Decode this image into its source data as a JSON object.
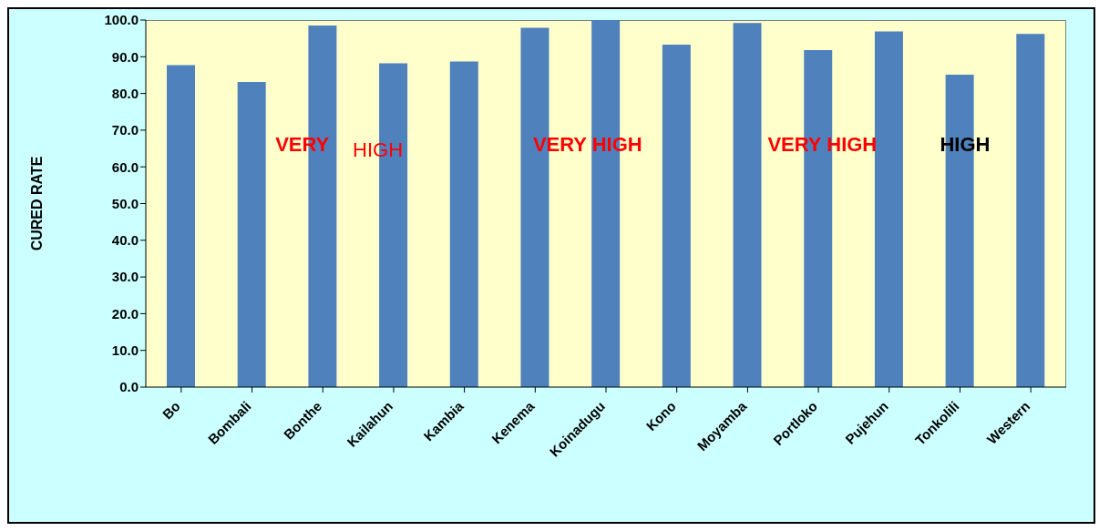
{
  "chart_data": {
    "type": "bar",
    "ylabel": "CURED RATE",
    "categories": [
      "Bo",
      "Bombali",
      "Bonthe",
      "Kailahun",
      "Kambia",
      "Kenema",
      "Koinadugu",
      "Kono",
      "Moyamba",
      "Portloko",
      "Pujehun",
      "Tonkolili",
      "Western"
    ],
    "values": [
      87.7,
      83.1,
      98.5,
      88.2,
      88.7,
      97.9,
      100,
      93.3,
      99.2,
      91.8,
      96.9,
      85.1,
      96.2
    ],
    "color": "#4f81bd",
    "ylim": [
      0,
      100
    ],
    "yticks": [
      {
        "value": 0,
        "label": "0.0"
      },
      {
        "value": 10,
        "label": "10.0"
      },
      {
        "value": 20,
        "label": "20.0"
      },
      {
        "value": 30,
        "label": "30.0"
      },
      {
        "value": 40,
        "label": "40.0"
      },
      {
        "value": 50,
        "label": "50.0"
      },
      {
        "value": 60,
        "label": "60.0"
      },
      {
        "value": 70,
        "label": "70.0"
      },
      {
        "value": 80,
        "label": "80.0"
      },
      {
        "value": 90,
        "label": "90.0"
      },
      {
        "value": 100,
        "label": "100.0"
      }
    ],
    "annotations": [
      "VERY",
      "HIGH",
      "VERY HIGH",
      "VERY HIGH",
      "HIGH"
    ],
    "grid": false,
    "legend": false
  }
}
